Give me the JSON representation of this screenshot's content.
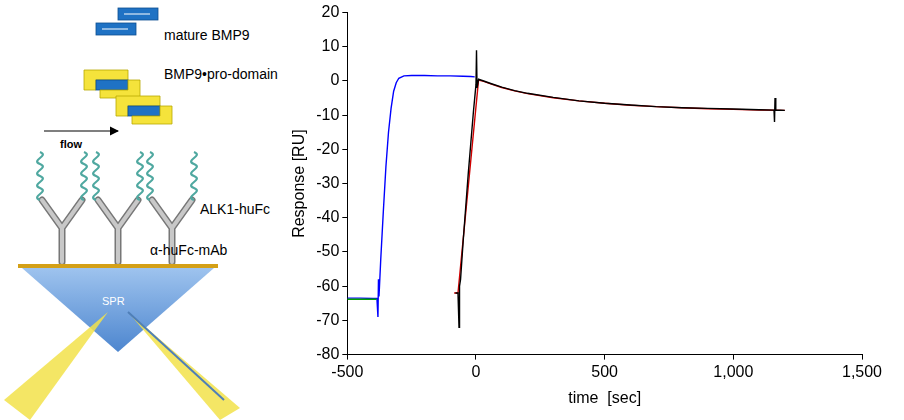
{
  "diagram": {
    "molecules": [
      "mature BMP9",
      "BMP9•pro-domain"
    ],
    "flow_label": "flow",
    "surface": [
      "ALK1-huFc",
      "α-huFc-mAb"
    ],
    "instrument": "SPR"
  },
  "chart_data": {
    "type": "line",
    "x_label": "time  [sec]",
    "y_label": "Response [RU]",
    "xlim": [
      -500,
      1500
    ],
    "xticks": [
      -500,
      0,
      500,
      1000,
      1500
    ],
    "ylim": [
      -80,
      20
    ],
    "yticks": [
      -80,
      -70,
      -60,
      -50,
      -40,
      -30,
      -20,
      -10,
      0,
      10,
      20
    ],
    "grid": false,
    "series": [
      {
        "color": "#00a000",
        "x": [
          -500,
          -450,
          -400,
          -386,
          -500
        ],
        "values": [
          -63.8,
          -63.8,
          -63.8,
          -63.8,
          -63.8
        ]
      },
      {
        "color": "#0000ff",
        "x": [
          -500,
          -450,
          -400,
          -385,
          -381,
          -379,
          -377,
          -375,
          -370,
          -360,
          -350,
          -340,
          -330,
          -320,
          -310,
          -300,
          -280,
          -250,
          -200,
          -150,
          -100,
          -50,
          -20,
          -5
        ],
        "values": [
          -63.5,
          -63.5,
          -63.6,
          -63.5,
          -69,
          -58,
          -63,
          -60,
          -52,
          -38,
          -25,
          -15,
          -8,
          -3,
          -0.5,
          0.8,
          1.5,
          1.6,
          1.6,
          1.5,
          1.5,
          1.4,
          1.3,
          1.2
        ]
      },
      {
        "color": "#000000",
        "x": [
          -80,
          -70,
          -66,
          -64,
          -60,
          -50,
          -40,
          -30,
          -20,
          -10,
          -5,
          0,
          2,
          4,
          10,
          30,
          60,
          100,
          150,
          200,
          300,
          400,
          500,
          600,
          700,
          800,
          900,
          1000,
          1100,
          1158,
          1160,
          1162,
          1165,
          1200
        ],
        "values": [
          -62,
          -62,
          -72,
          -60,
          -58,
          -47,
          -37,
          -27,
          -18,
          -9,
          -5,
          -1,
          9,
          -2,
          0.5,
          0,
          -0.8,
          -1.8,
          -2.8,
          -3.6,
          -4.8,
          -5.8,
          -6.5,
          -7,
          -7.5,
          -7.8,
          -8,
          -8.2,
          -8.4,
          -8.5,
          -12,
          -5,
          -8.5,
          -8.6
        ]
      },
      {
        "color": "#d00000",
        "x": [
          -85,
          -70,
          10,
          30,
          60,
          100,
          150,
          200,
          300,
          400,
          500,
          600,
          700,
          800,
          900,
          1000,
          1100,
          1200
        ],
        "values": [
          -62,
          -62,
          0.3,
          -0.1,
          -0.9,
          -1.9,
          -2.9,
          -3.7,
          -4.9,
          -5.8,
          -6.5,
          -7.1,
          -7.5,
          -7.8,
          -8.1,
          -8.3,
          -8.5,
          -8.6
        ]
      }
    ]
  }
}
